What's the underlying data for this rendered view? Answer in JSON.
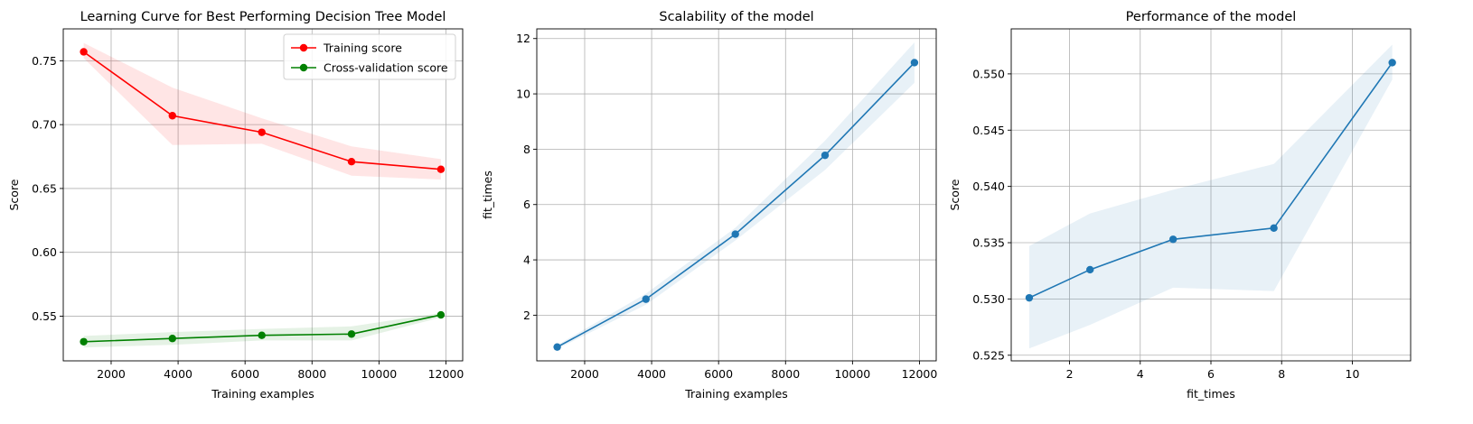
{
  "chart_data": [
    {
      "type": "line",
      "title": "Learning Curve for Best Performing Decision Tree Model",
      "xlabel": "Training examples",
      "ylabel": "Score",
      "xlim": [
        570,
        12500
      ],
      "ylim": [
        0.515,
        0.775
      ],
      "xticks": [
        2000,
        4000,
        6000,
        8000,
        10000,
        12000
      ],
      "yticks": [
        0.55,
        0.6,
        0.65,
        0.7,
        0.75
      ],
      "ytick_labels": [
        "0.55",
        "0.60",
        "0.65",
        "0.70",
        "0.75"
      ],
      "xtick_labels": [
        "2000",
        "4000",
        "6000",
        "8000",
        "10000",
        "12000"
      ],
      "grid": true,
      "legend": "top-right",
      "x": [
        1180,
        3830,
        6500,
        9180,
        11850
      ],
      "series": [
        {
          "name": "Training score",
          "color": "#ff0000",
          "values": [
            0.757,
            0.707,
            0.694,
            0.671,
            0.665
          ],
          "lower": [
            0.752,
            0.684,
            0.685,
            0.66,
            0.657
          ],
          "upper": [
            0.764,
            0.729,
            0.705,
            0.683,
            0.673
          ]
        },
        {
          "name": "Cross-validation score",
          "color": "#008000",
          "values": [
            0.53,
            0.5325,
            0.535,
            0.536,
            0.551
          ],
          "lower": [
            0.5255,
            0.5275,
            0.531,
            0.531,
            0.549
          ],
          "upper": [
            0.5345,
            0.5375,
            0.54,
            0.542,
            0.5525
          ]
        }
      ]
    },
    {
      "type": "line",
      "title": "Scalability of the model",
      "xlabel": "Training examples",
      "ylabel": "fit_times",
      "xlim": [
        570,
        12500
      ],
      "ylim": [
        0.35,
        12.35
      ],
      "xticks": [
        2000,
        4000,
        6000,
        8000,
        10000,
        12000
      ],
      "yticks": [
        2,
        4,
        6,
        8,
        10,
        12
      ],
      "ytick_labels": [
        "2",
        "4",
        "6",
        "8",
        "10",
        "12"
      ],
      "xtick_labels": [
        "2000",
        "4000",
        "6000",
        "8000",
        "10000",
        "12000"
      ],
      "grid": true,
      "x": [
        1180,
        3830,
        6500,
        9180,
        11850
      ],
      "series": [
        {
          "color": "#1f77b4",
          "values": [
            0.85,
            2.58,
            4.93,
            7.78,
            11.13
          ],
          "lower": [
            0.78,
            2.38,
            4.7,
            7.25,
            10.4
          ],
          "upper": [
            0.92,
            2.78,
            5.16,
            8.31,
            11.86
          ]
        }
      ]
    },
    {
      "type": "line",
      "title": "Performance of the model",
      "xlabel": "fit_times",
      "ylabel": "Score",
      "xlim": [
        0.35,
        11.65
      ],
      "ylim": [
        0.5245,
        0.554
      ],
      "xticks": [
        2,
        4,
        6,
        8,
        10
      ],
      "yticks": [
        0.525,
        0.53,
        0.535,
        0.54,
        0.545,
        0.55
      ],
      "ytick_labels": [
        "0.525",
        "0.530",
        "0.535",
        "0.540",
        "0.545",
        "0.550"
      ],
      "xtick_labels": [
        "2",
        "4",
        "6",
        "8",
        "10"
      ],
      "grid": true,
      "x": [
        0.86,
        2.58,
        4.93,
        7.78,
        11.13
      ],
      "series": [
        {
          "color": "#1f77b4",
          "values": [
            0.5301,
            0.5326,
            0.5353,
            0.5363,
            0.551
          ],
          "lower": [
            0.5256,
            0.5277,
            0.531,
            0.5307,
            0.5495
          ],
          "upper": [
            0.5347,
            0.5376,
            0.5397,
            0.542,
            0.5526
          ]
        }
      ]
    }
  ]
}
